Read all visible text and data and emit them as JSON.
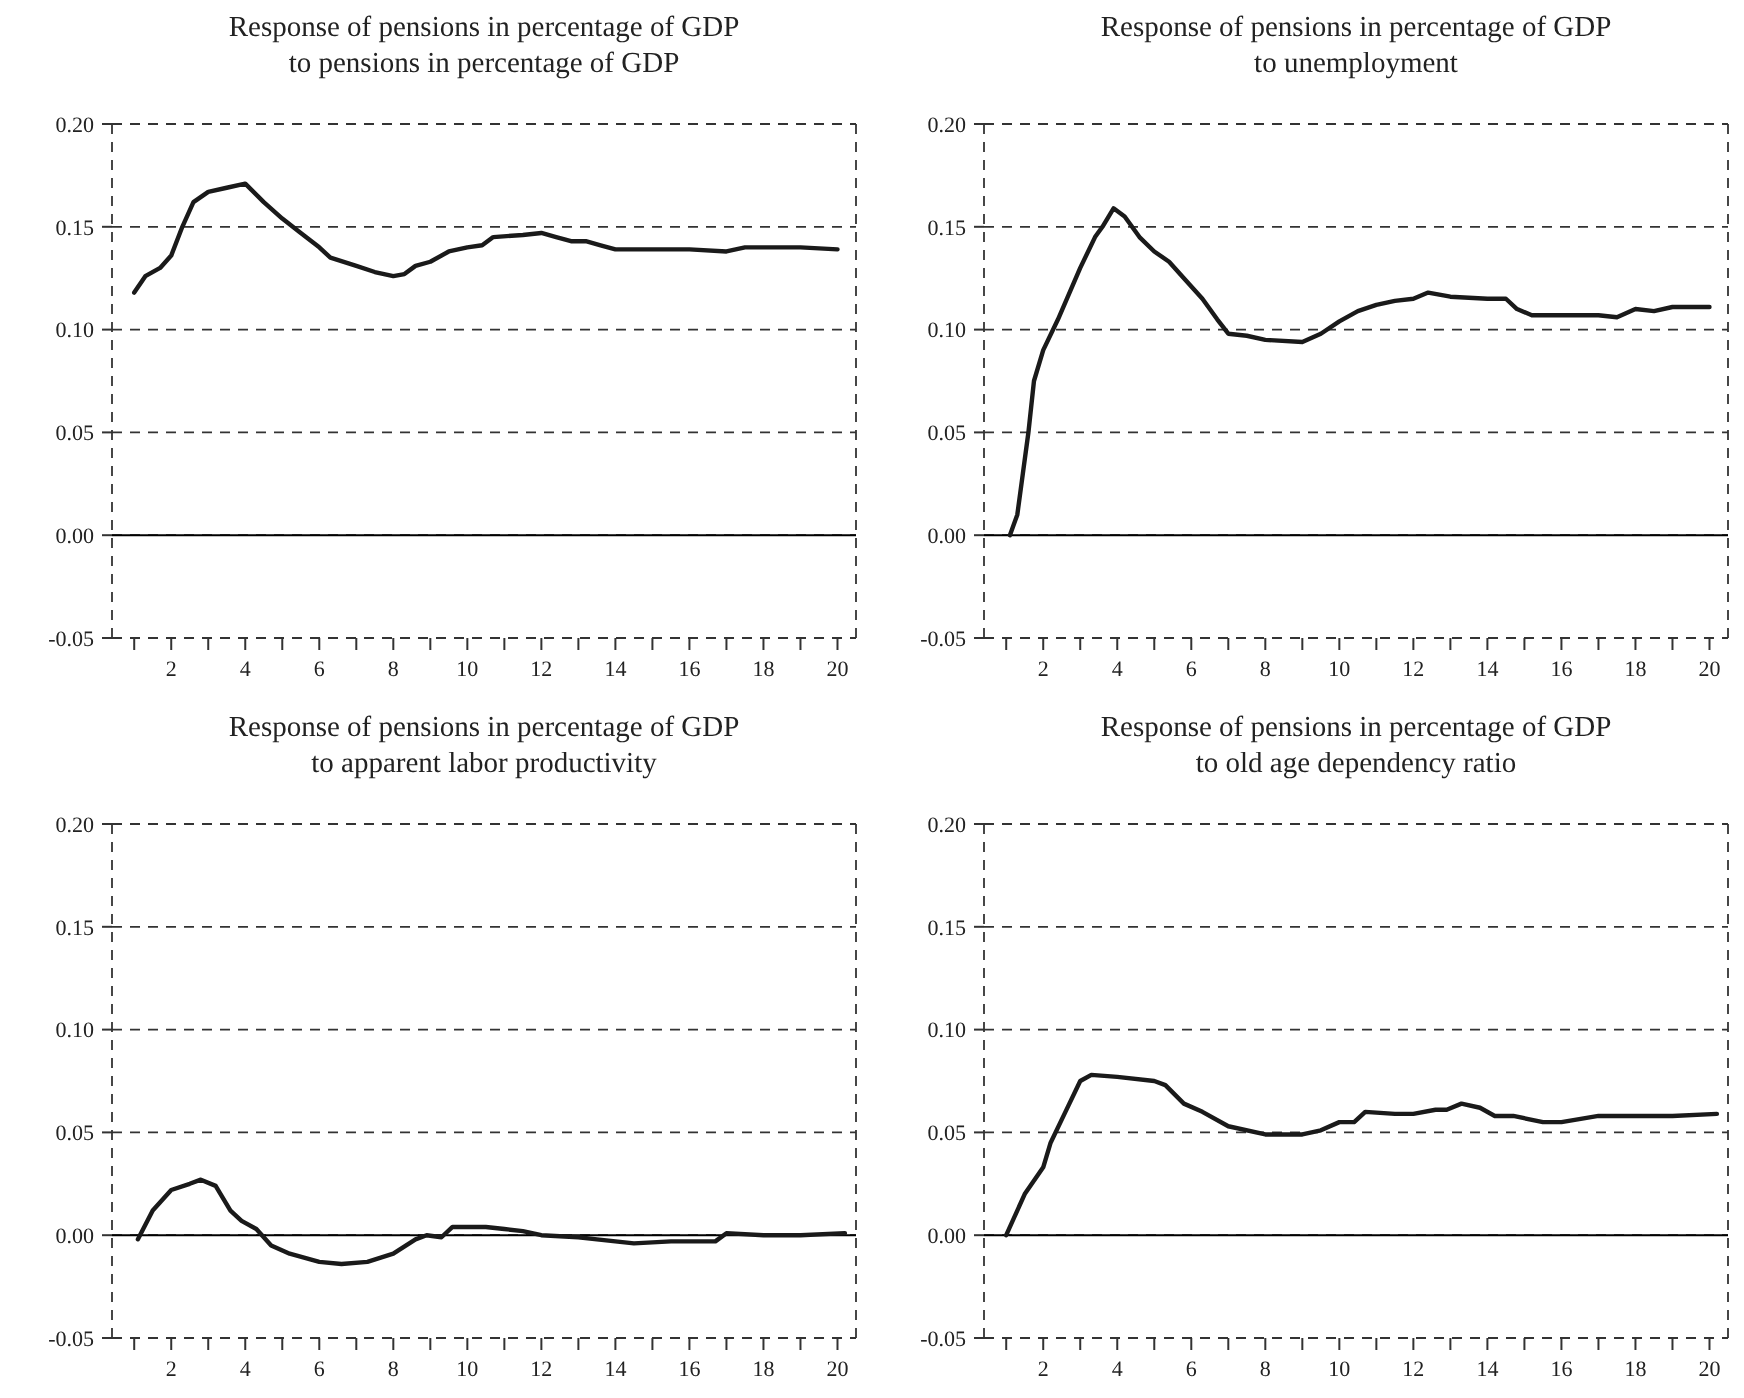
{
  "chart_data": [
    {
      "type": "line",
      "title": "Response of pensions in percentage of GDP\nto pensions in percentage of GDP",
      "xlim": [
        0.4,
        20.5
      ],
      "ylim": [
        -0.05,
        0.2
      ],
      "yticks": [
        {
          "value": -0.05,
          "label": "-0.05"
        },
        {
          "value": 0,
          "label": "0.00"
        },
        {
          "value": 0.05,
          "label": "0.05"
        },
        {
          "value": 0.1,
          "label": "0.10"
        },
        {
          "value": 0.15,
          "label": "0.15"
        },
        {
          "value": 0.2,
          "label": "0.20"
        }
      ],
      "xticks": [
        {
          "value": 1,
          "label": null
        },
        2,
        {
          "value": 3,
          "label": null
        },
        4,
        {
          "value": 5,
          "label": null
        },
        6,
        {
          "value": 7,
          "label": null
        },
        8,
        {
          "value": 9,
          "label": null
        },
        10,
        {
          "value": 11,
          "label": null
        },
        12,
        {
          "value": 13,
          "label": null
        },
        14,
        {
          "value": 15,
          "label": null
        },
        16,
        {
          "value": 17,
          "label": null
        },
        18,
        {
          "value": 19,
          "label": null
        },
        20
      ],
      "grid": "y",
      "ref_lines": [
        {
          "axis": "y",
          "value": 0,
          "label": null,
          "color": "#000000",
          "line_style": "solid"
        }
      ],
      "series": [
        {
          "color": "#1a1a1a",
          "x": [
            1,
            1.3,
            1.7,
            2,
            2.3,
            2.6,
            3,
            3.5,
            4,
            4.5,
            5,
            5.5,
            6,
            6.3,
            7,
            7.5,
            8,
            8.3,
            8.6,
            9,
            9.5,
            10,
            10.4,
            10.7,
            11.5,
            12,
            12.4,
            12.8,
            13.2,
            13.6,
            14,
            15,
            16,
            17,
            17.5,
            18,
            19,
            20
          ],
          "values": [
            0.118,
            0.126,
            0.13,
            0.136,
            0.15,
            0.162,
            0.167,
            0.169,
            0.171,
            0.162,
            0.154,
            0.147,
            0.14,
            0.135,
            0.131,
            0.128,
            0.126,
            0.127,
            0.131,
            0.133,
            0.138,
            0.14,
            0.141,
            0.145,
            0.146,
            0.147,
            0.145,
            0.143,
            0.143,
            0.141,
            0.139,
            0.139,
            0.139,
            0.138,
            0.14,
            0.14,
            0.14,
            0.139
          ]
        }
      ]
    },
    {
      "type": "line",
      "title": "Response of pensions in percentage of GDP\nto unemployment",
      "xlim": [
        0.4,
        20.5
      ],
      "ylim": [
        -0.05,
        0.2
      ],
      "yticks": [
        {
          "value": -0.05,
          "label": "-0.05"
        },
        {
          "value": 0,
          "label": "0.00"
        },
        {
          "value": 0.05,
          "label": "0.05"
        },
        {
          "value": 0.1,
          "label": "0.10"
        },
        {
          "value": 0.15,
          "label": "0.15"
        },
        {
          "value": 0.2,
          "label": "0.20"
        }
      ],
      "xticks": [
        {
          "value": 1,
          "label": null
        },
        2,
        {
          "value": 3,
          "label": null
        },
        4,
        {
          "value": 5,
          "label": null
        },
        6,
        {
          "value": 7,
          "label": null
        },
        8,
        {
          "value": 9,
          "label": null
        },
        10,
        {
          "value": 11,
          "label": null
        },
        12,
        {
          "value": 13,
          "label": null
        },
        14,
        {
          "value": 15,
          "label": null
        },
        16,
        {
          "value": 17,
          "label": null
        },
        18,
        {
          "value": 19,
          "label": null
        },
        20
      ],
      "grid": "y",
      "ref_lines": [
        {
          "axis": "y",
          "value": 0,
          "label": null,
          "color": "#000000",
          "line_style": "solid"
        }
      ],
      "series": [
        {
          "color": "#1a1a1a",
          "x": [
            1.1,
            1.3,
            1.45,
            1.6,
            1.75,
            2,
            2.4,
            3,
            3.4,
            3.6,
            3.9,
            4.2,
            4.6,
            5,
            5.4,
            5.8,
            6.3,
            6.7,
            7,
            7.5,
            8,
            9,
            9.5,
            10,
            10.5,
            11,
            11.5,
            12,
            12.4,
            13,
            14,
            14.5,
            14.8,
            15.2,
            16,
            17,
            17.5,
            18,
            18.5,
            19,
            20
          ],
          "values": [
            0,
            0.01,
            0.03,
            0.05,
            0.075,
            0.09,
            0.105,
            0.13,
            0.145,
            0.15,
            0.159,
            0.155,
            0.145,
            0.138,
            0.133,
            0.125,
            0.115,
            0.105,
            0.098,
            0.097,
            0.095,
            0.094,
            0.098,
            0.104,
            0.109,
            0.112,
            0.114,
            0.115,
            0.118,
            0.116,
            0.115,
            0.115,
            0.11,
            0.107,
            0.107,
            0.107,
            0.106,
            0.11,
            0.109,
            0.111,
            0.111
          ]
        }
      ]
    },
    {
      "type": "line",
      "title": "Response of pensions in percentage of GDP\nto apparent labor productivity",
      "xlim": [
        0.4,
        20.5
      ],
      "ylim": [
        -0.05,
        0.2
      ],
      "yticks": [
        {
          "value": -0.05,
          "label": "-0.05"
        },
        {
          "value": 0,
          "label": "0.00"
        },
        {
          "value": 0.05,
          "label": "0.05"
        },
        {
          "value": 0.1,
          "label": "0.10"
        },
        {
          "value": 0.15,
          "label": "0.15"
        },
        {
          "value": 0.2,
          "label": "0.20"
        }
      ],
      "xticks": [
        {
          "value": 1,
          "label": null
        },
        2,
        {
          "value": 3,
          "label": null
        },
        4,
        {
          "value": 5,
          "label": null
        },
        6,
        {
          "value": 7,
          "label": null
        },
        8,
        {
          "value": 9,
          "label": null
        },
        10,
        {
          "value": 11,
          "label": null
        },
        12,
        {
          "value": 13,
          "label": null
        },
        14,
        {
          "value": 15,
          "label": null
        },
        16,
        {
          "value": 17,
          "label": null
        },
        18,
        {
          "value": 19,
          "label": null
        },
        20
      ],
      "grid": "y",
      "ref_lines": [
        {
          "axis": "y",
          "value": 0,
          "label": null,
          "color": "#000000",
          "line_style": "solid"
        }
      ],
      "series": [
        {
          "color": "#1a1a1a",
          "x": [
            1.1,
            1.5,
            2,
            2.5,
            2.8,
            3.2,
            3.6,
            3.9,
            4.3,
            4.7,
            5.2,
            6,
            6.6,
            7.3,
            8,
            8.6,
            8.9,
            9.3,
            9.6,
            10.5,
            11,
            11.5,
            12,
            13,
            13.5,
            14.5,
            15.5,
            16.7,
            17,
            18,
            19,
            20.2
          ],
          "values": [
            -0.002,
            0.012,
            0.022,
            0.025,
            0.027,
            0.024,
            0.012,
            0.007,
            0.003,
            -0.005,
            -0.009,
            -0.013,
            -0.014,
            -0.013,
            -0.009,
            -0.002,
            0,
            -0.001,
            0.004,
            0.004,
            0.003,
            0.002,
            0,
            -0.001,
            -0.002,
            -0.004,
            -0.003,
            -0.003,
            0.001,
            0,
            0,
            0.001
          ]
        }
      ]
    },
    {
      "type": "line",
      "title": "Response of pensions in percentage of GDP\nto old age dependency ratio",
      "xlim": [
        0.4,
        20.5
      ],
      "ylim": [
        -0.05,
        0.2
      ],
      "yticks": [
        {
          "value": -0.05,
          "label": "-0.05"
        },
        {
          "value": 0,
          "label": "0.00"
        },
        {
          "value": 0.05,
          "label": "0.05"
        },
        {
          "value": 0.1,
          "label": "0.10"
        },
        {
          "value": 0.15,
          "label": "0.15"
        },
        {
          "value": 0.2,
          "label": "0.20"
        }
      ],
      "xticks": [
        {
          "value": 1,
          "label": null
        },
        2,
        {
          "value": 3,
          "label": null
        },
        4,
        {
          "value": 5,
          "label": null
        },
        6,
        {
          "value": 7,
          "label": null
        },
        8,
        {
          "value": 9,
          "label": null
        },
        10,
        {
          "value": 11,
          "label": null
        },
        12,
        {
          "value": 13,
          "label": null
        },
        14,
        {
          "value": 15,
          "label": null
        },
        16,
        {
          "value": 17,
          "label": null
        },
        18,
        {
          "value": 19,
          "label": null
        },
        20
      ],
      "grid": "y",
      "ref_lines": [
        {
          "axis": "y",
          "value": 0,
          "label": null,
          "color": "#000000",
          "line_style": "solid"
        }
      ],
      "series": [
        {
          "color": "#1a1a1a",
          "x": [
            1,
            1.5,
            2,
            2.2,
            2.6,
            3,
            3.3,
            4,
            5,
            5.3,
            5.8,
            6.3,
            7,
            8,
            9,
            9.5,
            10,
            10.4,
            10.7,
            11.5,
            12,
            12.6,
            12.9,
            13.3,
            13.8,
            14.2,
            14.7,
            15.5,
            16,
            17,
            19,
            20.2
          ],
          "values": [
            0,
            0.02,
            0.033,
            0.045,
            0.06,
            0.075,
            0.078,
            0.077,
            0.075,
            0.073,
            0.064,
            0.06,
            0.053,
            0.049,
            0.049,
            0.051,
            0.055,
            0.055,
            0.06,
            0.059,
            0.059,
            0.061,
            0.061,
            0.064,
            0.062,
            0.058,
            0.058,
            0.055,
            0.055,
            0.058,
            0.058,
            0.059
          ]
        }
      ]
    }
  ]
}
